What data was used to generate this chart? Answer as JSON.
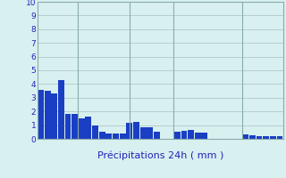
{
  "title": "",
  "xlabel": "Précipitations 24h ( mm )",
  "background_color": "#d8f0f0",
  "bar_color": "#1a3fc4",
  "grid_color": "#b0c8c8",
  "ylim": [
    0,
    10
  ],
  "yticks": [
    0,
    1,
    2,
    3,
    4,
    5,
    6,
    7,
    8,
    9,
    10
  ],
  "values": [
    3.6,
    3.5,
    3.3,
    4.3,
    1.8,
    1.8,
    1.5,
    1.6,
    1.0,
    0.5,
    0.4,
    0.4,
    0.4,
    1.2,
    1.25,
    0.85,
    0.85,
    0.5,
    0.0,
    0.0,
    0.55,
    0.6,
    0.65,
    0.45,
    0.45,
    0.0,
    0.0,
    0.0,
    0.0,
    0.0,
    0.3,
    0.25,
    0.2,
    0.2,
    0.2,
    0.2
  ],
  "xlabel_fontsize": 8,
  "xlabel_color": "#2222bb",
  "tick_color": "#2222bb",
  "day_label_color": "#2222bb",
  "day_label_fontsize": 7,
  "spine_color": "#8aabab",
  "vline_color": "#8aabab"
}
